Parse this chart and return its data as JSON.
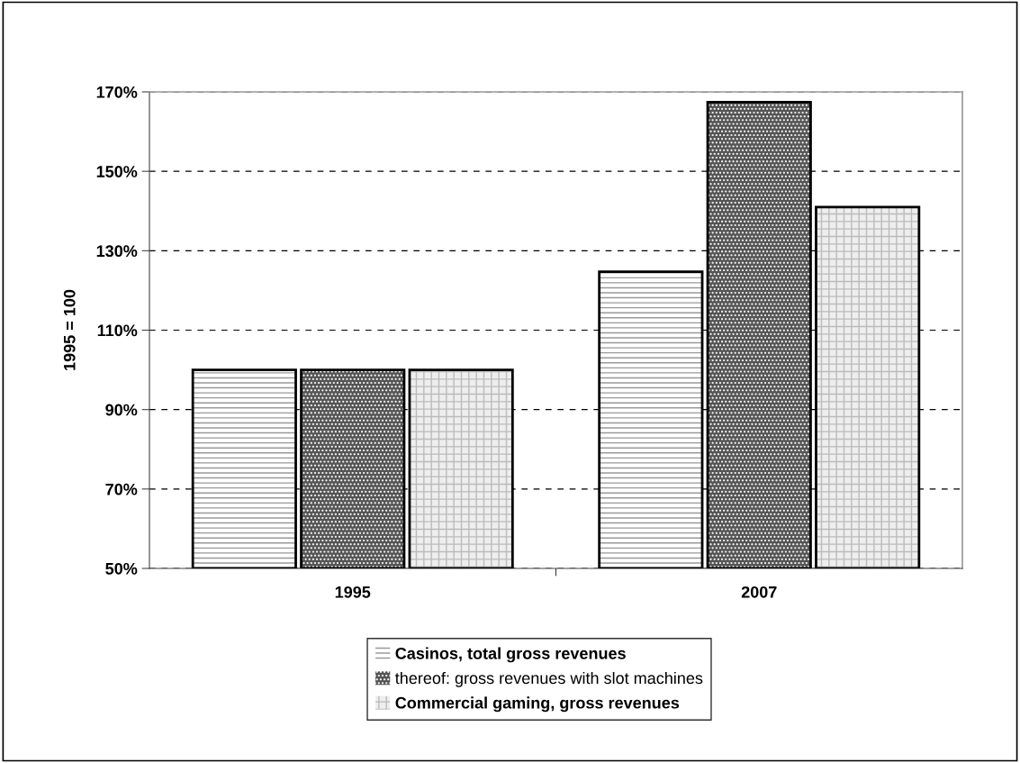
{
  "chart_data": {
    "type": "bar",
    "ylabel": "1995 = 100",
    "categories": [
      "1995",
      "2007"
    ],
    "series": [
      {
        "name": "Casinos, total gross revenues",
        "color": "#ffffff",
        "values": [
          100,
          124.7
        ]
      },
      {
        "name": "thereof: gross revenues with slot machines",
        "color": "#555555",
        "values": [
          100,
          167.4
        ]
      },
      {
        "name": "Commercial gaming, gross revenues",
        "color": "#eeeeee",
        "values": [
          100,
          141
        ]
      }
    ],
    "ylim": [
      50,
      170
    ],
    "yticks": [
      {
        "value": 50,
        "label": "50%"
      },
      {
        "value": 70,
        "label": "70%"
      },
      {
        "value": 90,
        "label": "90%"
      },
      {
        "value": 110,
        "label": "110%"
      },
      {
        "value": 130,
        "label": "130%"
      },
      {
        "value": 150,
        "label": "150%"
      },
      {
        "value": 170,
        "label": "170%"
      }
    ],
    "grid": "y",
    "legend": "bottom"
  }
}
